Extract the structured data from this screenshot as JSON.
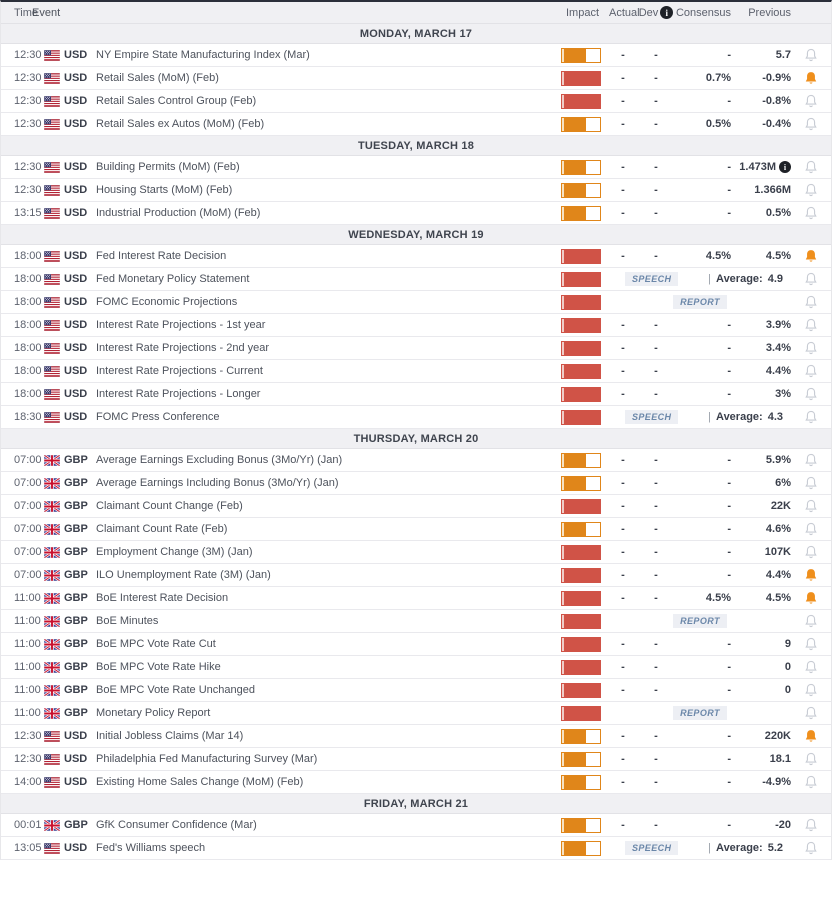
{
  "columns": {
    "time": "Time",
    "event": "Event",
    "impact": "Impact",
    "actual": "Actual",
    "dev": "Dev",
    "consensus": "Consensus",
    "previous": "Previous"
  },
  "labels": {
    "average": "Average:",
    "separator": "|"
  },
  "icons": {
    "info": "i",
    "alert_bell": "bell",
    "us_flag": "us-flag",
    "gb_flag": "gb-flag"
  },
  "colors": {
    "impact_high": "#d05347",
    "impact_medium": "#e0861a",
    "alert_active": "#ef8f1c",
    "header_bg": "#f0f0f3"
  },
  "days": [
    {
      "label": "MONDAY, MARCH 17",
      "rows": [
        {
          "time": "12:30",
          "flag": "us",
          "currency": "USD",
          "event": "NY Empire State Manufacturing Index (Mar)",
          "impact": "medium",
          "actual": "-",
          "dev": "-",
          "consensus": "-",
          "previous": "5.7",
          "bell": "off"
        },
        {
          "time": "12:30",
          "flag": "us",
          "currency": "USD",
          "event": "Retail Sales (MoM) (Feb)",
          "impact": "high",
          "actual": "-",
          "dev": "-",
          "consensus": "0.7%",
          "previous": "-0.9%",
          "bell": "on"
        },
        {
          "time": "12:30",
          "flag": "us",
          "currency": "USD",
          "event": "Retail Sales Control Group (Feb)",
          "impact": "high",
          "actual": "-",
          "dev": "-",
          "consensus": "-",
          "previous": "-0.8%",
          "bell": "off"
        },
        {
          "time": "12:30",
          "flag": "us",
          "currency": "USD",
          "event": "Retail Sales ex Autos (MoM) (Feb)",
          "impact": "medium",
          "actual": "-",
          "dev": "-",
          "consensus": "0.5%",
          "previous": "-0.4%",
          "bell": "off"
        }
      ]
    },
    {
      "label": "TUESDAY, MARCH 18",
      "rows": [
        {
          "time": "12:30",
          "flag": "us",
          "currency": "USD",
          "event": "Building Permits (MoM) (Feb)",
          "impact": "medium",
          "actual": "-",
          "dev": "-",
          "consensus": "-",
          "previous": "1.473M",
          "info": true,
          "bell": "off"
        },
        {
          "time": "12:30",
          "flag": "us",
          "currency": "USD",
          "event": "Housing Starts (MoM) (Feb)",
          "impact": "medium",
          "actual": "-",
          "dev": "-",
          "consensus": "-",
          "previous": "1.366M",
          "bell": "off"
        },
        {
          "time": "13:15",
          "flag": "us",
          "currency": "USD",
          "event": "Industrial Production (MoM) (Feb)",
          "impact": "medium",
          "actual": "-",
          "dev": "-",
          "consensus": "-",
          "previous": "0.5%",
          "bell": "off"
        }
      ]
    },
    {
      "label": "WEDNESDAY, MARCH 19",
      "rows": [
        {
          "time": "18:00",
          "flag": "us",
          "currency": "USD",
          "event": "Fed Interest Rate Decision",
          "impact": "high",
          "actual": "-",
          "dev": "-",
          "consensus": "4.5%",
          "previous": "4.5%",
          "bell": "on"
        },
        {
          "time": "18:00",
          "flag": "us",
          "currency": "USD",
          "event": "Fed Monetary Policy Statement",
          "impact": "high",
          "badge": "SPEECH",
          "average": "4.9",
          "bell": "off"
        },
        {
          "time": "18:00",
          "flag": "us",
          "currency": "USD",
          "event": "FOMC Economic Projections",
          "impact": "high",
          "badge": "REPORT",
          "bell": "off"
        },
        {
          "time": "18:00",
          "flag": "us",
          "currency": "USD",
          "event": "Interest Rate Projections - 1st year",
          "impact": "high",
          "actual": "-",
          "dev": "-",
          "consensus": "-",
          "previous": "3.9%",
          "bell": "off"
        },
        {
          "time": "18:00",
          "flag": "us",
          "currency": "USD",
          "event": "Interest Rate Projections - 2nd year",
          "impact": "high",
          "actual": "-",
          "dev": "-",
          "consensus": "-",
          "previous": "3.4%",
          "bell": "off"
        },
        {
          "time": "18:00",
          "flag": "us",
          "currency": "USD",
          "event": "Interest Rate Projections - Current",
          "impact": "high",
          "actual": "-",
          "dev": "-",
          "consensus": "-",
          "previous": "4.4%",
          "bell": "off"
        },
        {
          "time": "18:00",
          "flag": "us",
          "currency": "USD",
          "event": "Interest Rate Projections - Longer",
          "impact": "high",
          "actual": "-",
          "dev": "-",
          "consensus": "-",
          "previous": "3%",
          "bell": "off"
        },
        {
          "time": "18:30",
          "flag": "us",
          "currency": "USD",
          "event": "FOMC Press Conference",
          "impact": "high",
          "badge": "SPEECH",
          "average": "4.3",
          "bell": "off"
        }
      ]
    },
    {
      "label": "THURSDAY, MARCH 20",
      "rows": [
        {
          "time": "07:00",
          "flag": "gb",
          "currency": "GBP",
          "event": "Average Earnings Excluding Bonus (3Mo/Yr) (Jan)",
          "impact": "medium",
          "actual": "-",
          "dev": "-",
          "consensus": "-",
          "previous": "5.9%",
          "bell": "off"
        },
        {
          "time": "07:00",
          "flag": "gb",
          "currency": "GBP",
          "event": "Average Earnings Including Bonus (3Mo/Yr) (Jan)",
          "impact": "medium",
          "actual": "-",
          "dev": "-",
          "consensus": "-",
          "previous": "6%",
          "bell": "off"
        },
        {
          "time": "07:00",
          "flag": "gb",
          "currency": "GBP",
          "event": "Claimant Count Change (Feb)",
          "impact": "high",
          "actual": "-",
          "dev": "-",
          "consensus": "-",
          "previous": "22K",
          "bell": "off"
        },
        {
          "time": "07:00",
          "flag": "gb",
          "currency": "GBP",
          "event": "Claimant Count Rate (Feb)",
          "impact": "medium",
          "actual": "-",
          "dev": "-",
          "consensus": "-",
          "previous": "4.6%",
          "bell": "off"
        },
        {
          "time": "07:00",
          "flag": "gb",
          "currency": "GBP",
          "event": "Employment Change (3M) (Jan)",
          "impact": "high",
          "actual": "-",
          "dev": "-",
          "consensus": "-",
          "previous": "107K",
          "bell": "off"
        },
        {
          "time": "07:00",
          "flag": "gb",
          "currency": "GBP",
          "event": "ILO Unemployment Rate (3M) (Jan)",
          "impact": "high",
          "actual": "-",
          "dev": "-",
          "consensus": "-",
          "previous": "4.4%",
          "bell": "on"
        },
        {
          "time": "11:00",
          "flag": "gb",
          "currency": "GBP",
          "event": "BoE Interest Rate Decision",
          "impact": "high",
          "actual": "-",
          "dev": "-",
          "consensus": "4.5%",
          "previous": "4.5%",
          "bell": "on"
        },
        {
          "time": "11:00",
          "flag": "gb",
          "currency": "GBP",
          "event": "BoE Minutes",
          "impact": "high",
          "badge": "REPORT",
          "bell": "off"
        },
        {
          "time": "11:00",
          "flag": "gb",
          "currency": "GBP",
          "event": "BoE MPC Vote Rate Cut",
          "impact": "high",
          "actual": "-",
          "dev": "-",
          "consensus": "-",
          "previous": "9",
          "bell": "off"
        },
        {
          "time": "11:00",
          "flag": "gb",
          "currency": "GBP",
          "event": "BoE MPC Vote Rate Hike",
          "impact": "high",
          "actual": "-",
          "dev": "-",
          "consensus": "-",
          "previous": "0",
          "bell": "off"
        },
        {
          "time": "11:00",
          "flag": "gb",
          "currency": "GBP",
          "event": "BoE MPC Vote Rate Unchanged",
          "impact": "high",
          "actual": "-",
          "dev": "-",
          "consensus": "-",
          "previous": "0",
          "bell": "off"
        },
        {
          "time": "11:00",
          "flag": "gb",
          "currency": "GBP",
          "event": "Monetary Policy Report",
          "impact": "high",
          "badge": "REPORT",
          "bell": "off"
        },
        {
          "time": "12:30",
          "flag": "us",
          "currency": "USD",
          "event": "Initial Jobless Claims (Mar 14)",
          "impact": "medium",
          "actual": "-",
          "dev": "-",
          "consensus": "-",
          "previous": "220K",
          "bell": "on"
        },
        {
          "time": "12:30",
          "flag": "us",
          "currency": "USD",
          "event": "Philadelphia Fed Manufacturing Survey (Mar)",
          "impact": "medium",
          "actual": "-",
          "dev": "-",
          "consensus": "-",
          "previous": "18.1",
          "bell": "off"
        },
        {
          "time": "14:00",
          "flag": "us",
          "currency": "USD",
          "event": "Existing Home Sales Change (MoM) (Feb)",
          "impact": "medium",
          "actual": "-",
          "dev": "-",
          "consensus": "-",
          "previous": "-4.9%",
          "bell": "off"
        }
      ]
    },
    {
      "label": "FRIDAY, MARCH 21",
      "rows": [
        {
          "time": "00:01",
          "flag": "gb",
          "currency": "GBP",
          "event": "GfK Consumer Confidence (Mar)",
          "impact": "medium",
          "actual": "-",
          "dev": "-",
          "consensus": "-",
          "previous": "-20",
          "bell": "off"
        },
        {
          "time": "13:05",
          "flag": "us",
          "currency": "USD",
          "event": "Fed's Williams speech",
          "impact": "medium",
          "badge": "SPEECH",
          "average": "5.2",
          "bell": "off"
        }
      ]
    }
  ]
}
